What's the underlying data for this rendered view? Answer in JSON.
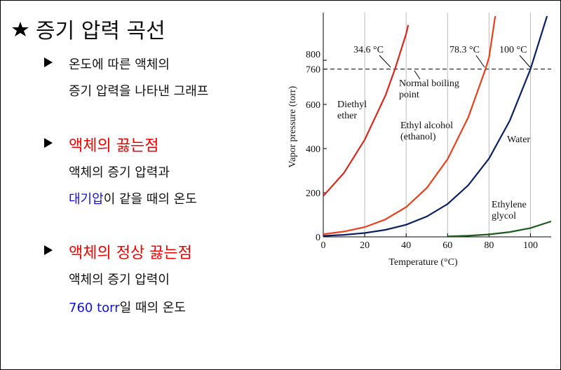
{
  "slide": {
    "title": "증기 압력 곡선",
    "bullets": [
      {
        "lines": [
          "온도에 따른 액체의",
          "증기 압력을 나타낸 그래프"
        ]
      },
      {
        "heading": "액체의 끓는점",
        "line1": "액체의 증기 압력과",
        "highlight": "대기압",
        "rest": "이 같을 때의 온도"
      },
      {
        "heading": "액체의 정상 끓는점",
        "line1": "액체의 증기 압력이",
        "highlight": "760 torr",
        "rest": "일 때의 온도"
      }
    ]
  },
  "chart_data": {
    "type": "line",
    "x_label": "Temperature (°C)",
    "y_label": "Vapor pressure (torr)",
    "xlim": [
      0,
      110
    ],
    "ylim": [
      0,
      1000
    ],
    "xticks": [
      0,
      20,
      40,
      60,
      80,
      100
    ],
    "yticks": [
      0,
      200,
      400,
      600,
      760,
      800
    ],
    "grid": "x",
    "reference_line": 760,
    "reference_label": "Normal boiling point",
    "annotations": [
      "34.6 °C",
      "78.3 °C",
      "100 °C"
    ],
    "series": [
      {
        "name": "Diethyl ether",
        "color": "#d62a1e",
        "x": [
          0,
          10,
          20,
          30,
          34.6,
          40,
          41
        ],
        "values": [
          185,
          290,
          440,
          640,
          760,
          920,
          960
        ]
      },
      {
        "name": "Ethyl alcohol (ethanol)",
        "color": "#e8401c",
        "x": [
          0,
          10,
          20,
          30,
          40,
          50,
          60,
          70,
          78.3,
          80,
          83
        ],
        "values": [
          12,
          24,
          44,
          79,
          135,
          222,
          352,
          542,
          760,
          813,
          1000
        ]
      },
      {
        "name": "Water",
        "color": "#0d1f63",
        "x": [
          0,
          10,
          20,
          30,
          40,
          50,
          60,
          70,
          80,
          90,
          100,
          108
        ],
        "values": [
          4.6,
          9.2,
          17.5,
          31.8,
          55,
          92.5,
          149,
          234,
          355,
          526,
          760,
          1000
        ]
      },
      {
        "name": "Ethylene glycol",
        "color": "#1e5a1e",
        "x": [
          60,
          70,
          80,
          90,
          100,
          110
        ],
        "values": [
          2,
          5,
          11,
          22,
          40,
          70
        ]
      }
    ]
  }
}
